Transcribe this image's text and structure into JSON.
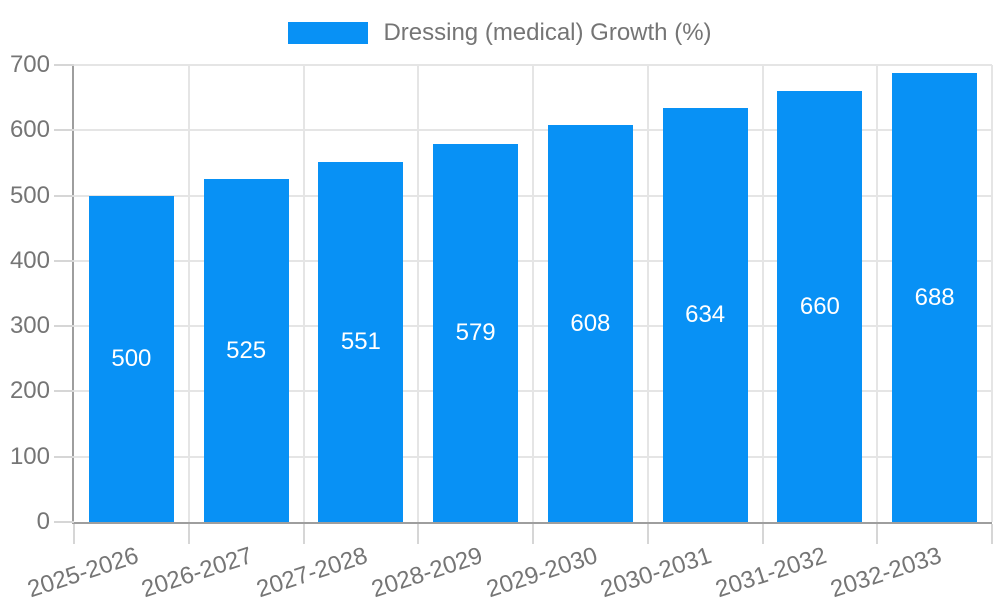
{
  "legend": {
    "label": "Dressing (medical) Growth (%)"
  },
  "chart_data": {
    "type": "bar",
    "title": "Dressing (medical) Growth (%)",
    "categories": [
      "2025-2026",
      "2026-2027",
      "2027-2028",
      "2028-2029",
      "2029-2030",
      "2030-2031",
      "2031-2032",
      "2032-2033"
    ],
    "values": [
      500,
      525,
      551,
      579,
      608,
      634,
      660,
      688
    ],
    "xlabel": "",
    "ylabel": "",
    "ylim": [
      0,
      700
    ],
    "yticks": [
      0,
      100,
      200,
      300,
      400,
      500,
      600,
      700
    ],
    "grid": true,
    "legend_position": "top-center",
    "value_labels": "inside-center",
    "x_tick_rotation_deg": -18,
    "colors": {
      "bar": "#0891F5",
      "grid": "#E5E5E5",
      "axis": "#9E9E9E",
      "tick": "#D6D6D6",
      "text": "#757575",
      "value_label": "#FFFFFF",
      "background": "#FFFFFF"
    }
  }
}
